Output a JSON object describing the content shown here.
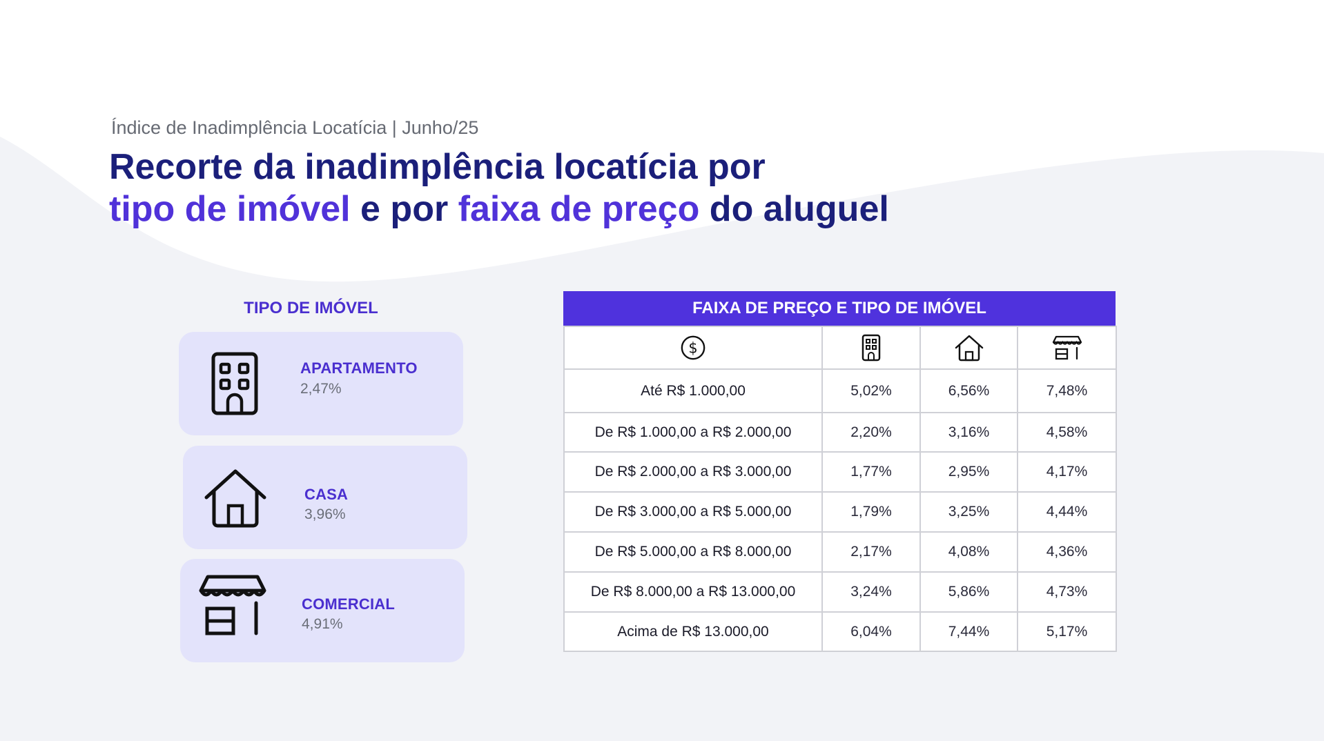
{
  "header": {
    "kicker": "Índice de Inadimplência Locatícia | Junho/25",
    "title_line1": "Recorte da inadimplência locatícia por",
    "title_hl1": "tipo de imóvel",
    "title_mid": " e por ",
    "title_hl2": "faixa de preço",
    "title_end": " do aluguel"
  },
  "tipo": {
    "title": "TIPO DE IMÓVEL",
    "cards": [
      {
        "label": "APARTAMENTO",
        "value": "2,47%",
        "icon": "building-icon"
      },
      {
        "label": "CASA",
        "value": "3,96%",
        "icon": "house-icon"
      },
      {
        "label": "COMERCIAL",
        "value": "4,91%",
        "icon": "store-icon"
      }
    ]
  },
  "faixa": {
    "title": "FAIXA DE PREÇO E TIPO DE IMÓVEL",
    "column_icons": [
      "dollar-coin-icon",
      "building-icon",
      "house-icon",
      "store-icon"
    ],
    "rows": [
      {
        "range": "Até R$ 1.000,00",
        "values": [
          "5,02%",
          "6,56%",
          "7,48%"
        ]
      },
      {
        "range": "De R$ 1.000,00 a R$ 2.000,00",
        "values": [
          "2,20%",
          "3,16%",
          "4,58%"
        ]
      },
      {
        "range": "De R$ 2.000,00 a R$ 3.000,00",
        "values": [
          "1,77%",
          "2,95%",
          "4,17%"
        ]
      },
      {
        "range": "De R$ 3.000,00 a R$ 5.000,00",
        "values": [
          "1,79%",
          "3,25%",
          "4,44%"
        ]
      },
      {
        "range": "De R$ 5.000,00 a R$ 8.000,00",
        "values": [
          "2,17%",
          "4,08%",
          "4,36%"
        ]
      },
      {
        "range": "De R$ 8.000,00 a R$ 13.000,00",
        "values": [
          "3,24%",
          "5,86%",
          "4,73%"
        ]
      },
      {
        "range": "Acima de R$ 13.000,00",
        "values": [
          "6,04%",
          "7,44%",
          "5,17%"
        ]
      }
    ]
  },
  "colors": {
    "navy": "#1b1f7a",
    "accent": "#5032d9",
    "card_bg": "#e3e3fb",
    "header_bg": "#4f32dd",
    "page_bg": "#f2f3f7"
  }
}
